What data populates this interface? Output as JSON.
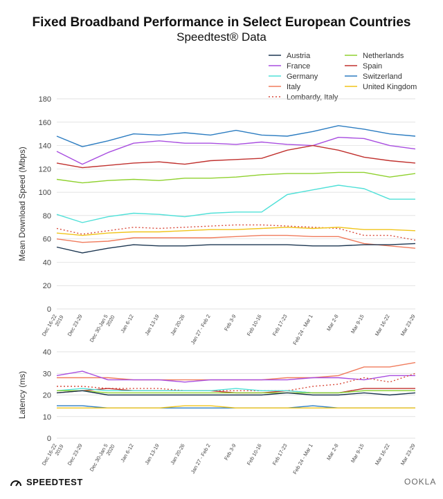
{
  "title": "Fixed Broadband Performance in Select European Countries",
  "subtitle": "Speedtest® Data",
  "footer": {
    "brand": "SPEEDTEST",
    "logo_text": "OOKLA"
  },
  "colors": {
    "Austria": "#1b3550",
    "France": "#a84de0",
    "Germany": "#4fe0d8",
    "Italy": "#f07b5c",
    "Lombardy, Italy": "#d9493a",
    "Netherlands": "#8fd12e",
    "Spain": "#c0302d",
    "Switzerland": "#2b7cc1",
    "United Kingdom": "#f0c419"
  },
  "legend": [
    {
      "name": "Austria",
      "style": "solid"
    },
    {
      "name": "France",
      "style": "solid"
    },
    {
      "name": "Germany",
      "style": "solid"
    },
    {
      "name": "Italy",
      "style": "solid"
    },
    {
      "name": "Lombardy, Italy",
      "style": "dotted"
    },
    {
      "name": "Netherlands",
      "style": "solid"
    },
    {
      "name": "Spain",
      "style": "solid"
    },
    {
      "name": "Switzerland",
      "style": "solid"
    },
    {
      "name": "United Kingdom",
      "style": "solid"
    }
  ],
  "chart_data": [
    {
      "type": "line",
      "ylabel": "Mean Download Speed (Mbps)",
      "ylim": [
        0,
        180
      ],
      "yticks": [
        0,
        20,
        40,
        60,
        80,
        100,
        120,
        140,
        160,
        180
      ],
      "categories": [
        "Dec 16-22 2019",
        "Dec 23-29",
        "Dec 30-Jan 5 2020",
        "Jan 6-12",
        "Jan 13-19",
        "Jan 20-26",
        "Jan 27 - Feb 2",
        "Feb 3-9",
        "Feb 10-16",
        "Feb 17-23",
        "Feb 24 - Mar 1",
        "Mar 2-8",
        "Mar 9-15",
        "Mar 16-22",
        "Mar 23-29"
      ],
      "series": [
        {
          "name": "Switzerland",
          "values": [
            148,
            139,
            144,
            150,
            149,
            151,
            149,
            153,
            149,
            148,
            152,
            157,
            154,
            150,
            148
          ]
        },
        {
          "name": "France",
          "values": [
            135,
            124,
            134,
            142,
            144,
            142,
            142,
            141,
            143,
            141,
            140,
            147,
            146,
            140,
            137
          ]
        },
        {
          "name": "Spain",
          "values": [
            125,
            121,
            123,
            125,
            126,
            124,
            127,
            128,
            129,
            136,
            140,
            136,
            130,
            127,
            125
          ]
        },
        {
          "name": "Netherlands",
          "values": [
            111,
            108,
            110,
            111,
            110,
            112,
            112,
            113,
            115,
            116,
            116,
            117,
            117,
            113,
            116
          ]
        },
        {
          "name": "Germany",
          "values": [
            81,
            74,
            79,
            82,
            81,
            79,
            82,
            83,
            83,
            98,
            102,
            106,
            103,
            94,
            94
          ]
        },
        {
          "name": "Lombardy, Italy",
          "values": [
            69,
            64,
            67,
            70,
            69,
            70,
            71,
            72,
            72,
            71,
            70,
            69,
            63,
            63,
            59
          ]
        },
        {
          "name": "United Kingdom",
          "values": [
            65,
            63,
            65,
            66,
            66,
            67,
            68,
            68,
            69,
            70,
            69,
            70,
            68,
            68,
            67
          ]
        },
        {
          "name": "Italy",
          "values": [
            60,
            57,
            58,
            61,
            61,
            61,
            61,
            62,
            63,
            63,
            62,
            62,
            56,
            54,
            52
          ]
        },
        {
          "name": "Austria",
          "values": [
            53,
            48,
            52,
            55,
            54,
            54,
            55,
            55,
            55,
            55,
            54,
            54,
            55,
            55,
            56
          ]
        }
      ]
    },
    {
      "type": "line",
      "ylabel": "Latency (ms)",
      "ylim": [
        0,
        40
      ],
      "yticks": [
        0,
        10,
        20,
        30,
        40
      ],
      "categories": [
        "Dec 16-22 2019",
        "Dec 23-29",
        "Dec 30-Jan 5 2020",
        "Jan 6-12",
        "Jan 13-19",
        "Jan 20-26",
        "Jan 27 - Feb 2",
        "Feb 3-9",
        "Feb 10-16",
        "Feb 17-23",
        "Feb 24 - Mar 1",
        "Mar 2-8",
        "Mar 9-15",
        "Mar 16-22",
        "Mar 23-29"
      ],
      "series": [
        {
          "name": "Italy",
          "values": [
            28,
            28,
            28,
            27,
            27,
            27,
            27,
            27,
            27,
            28,
            28,
            29,
            33,
            33,
            35
          ]
        },
        {
          "name": "France",
          "values": [
            29,
            31,
            27,
            27,
            27,
            26,
            27,
            27,
            27,
            27,
            28,
            28,
            27,
            29,
            29
          ]
        },
        {
          "name": "Lombardy, Italy",
          "values": [
            24,
            24,
            23,
            23,
            23,
            22,
            22,
            22,
            22,
            22,
            24,
            25,
            28,
            26,
            30
          ]
        },
        {
          "name": "Spain",
          "values": [
            21,
            22,
            23,
            22,
            22,
            22,
            22,
            21,
            21,
            22,
            21,
            21,
            23,
            23,
            23
          ]
        },
        {
          "name": "Germany",
          "values": [
            22,
            23,
            22,
            22,
            22,
            22,
            22,
            23,
            22,
            22,
            21,
            21,
            22,
            22,
            22
          ]
        },
        {
          "name": "Netherlands",
          "values": [
            22,
            22,
            21,
            21,
            21,
            21,
            21,
            21,
            21,
            21,
            21,
            21,
            22,
            22,
            22
          ]
        },
        {
          "name": "Austria",
          "values": [
            21,
            22,
            20,
            20,
            20,
            20,
            20,
            20,
            20,
            21,
            20,
            20,
            21,
            20,
            21
          ]
        },
        {
          "name": "Switzerland",
          "values": [
            15,
            15,
            14,
            14,
            14,
            14,
            14,
            14,
            14,
            14,
            15,
            14,
            14,
            14,
            14
          ]
        },
        {
          "name": "United Kingdom",
          "values": [
            14,
            14,
            14,
            14,
            14,
            15,
            15,
            14,
            14,
            14,
            14,
            14,
            14,
            14,
            14
          ]
        }
      ]
    }
  ]
}
